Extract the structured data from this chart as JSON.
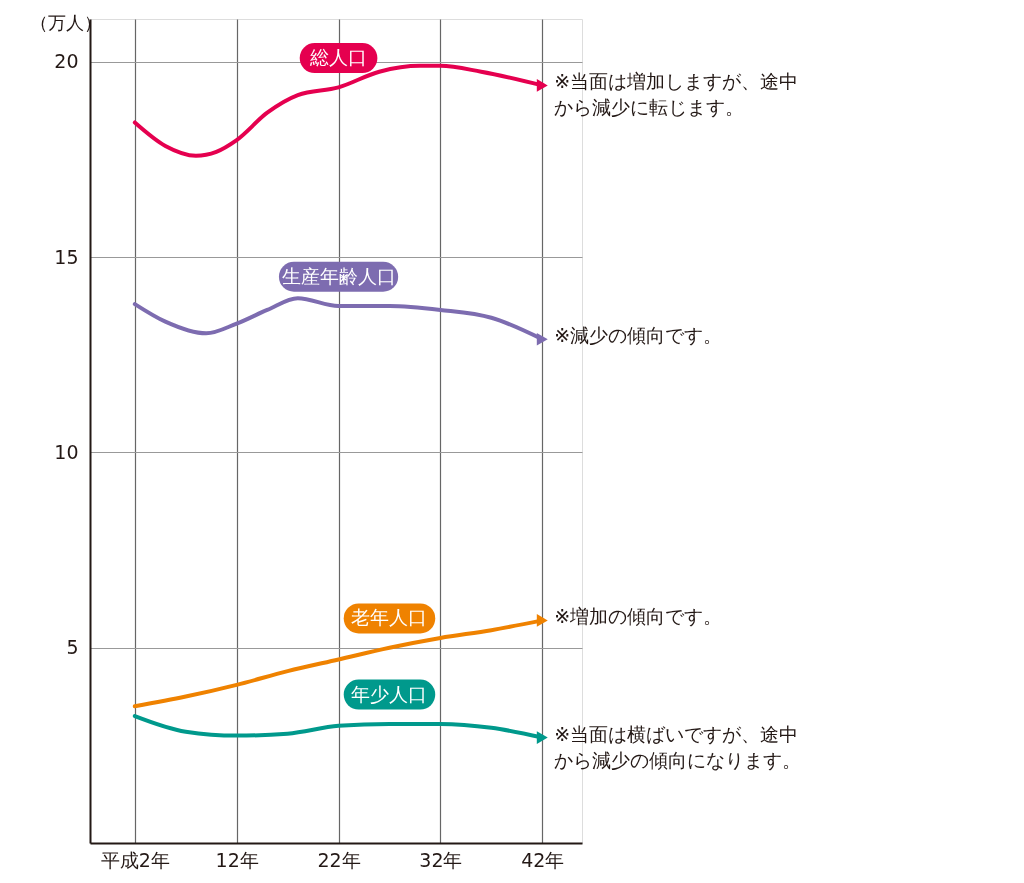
{
  "chart_data": {
    "type": "line",
    "ylabel": "（万人）",
    "xlim": [
      -2.4,
      45.9
    ],
    "xticks": [
      {
        "value": 2,
        "label": "平成2年"
      },
      {
        "value": 12,
        "label": "12年"
      },
      {
        "value": 22,
        "label": "22年"
      },
      {
        "value": 32,
        "label": "32年"
      },
      {
        "value": 42,
        "label": "42年"
      }
    ],
    "ylim": [
      0,
      21.1
    ],
    "yticks": [
      5,
      10,
      15,
      20
    ],
    "grid": true,
    "legend": false,
    "marker": "none",
    "line_style": "solid",
    "series": [
      {
        "name": "総人口",
        "color": "#e5004f",
        "x": [
          2,
          5,
          8,
          10,
          12,
          15,
          18,
          22,
          26,
          30,
          32,
          36,
          42
        ],
        "values": [
          18.45,
          17.85,
          17.6,
          17.7,
          18.0,
          18.7,
          19.15,
          19.35,
          19.75,
          19.9,
          19.9,
          19.75,
          19.4
        ]
      },
      {
        "name": "生産年齢人口",
        "color": "#7d6cb0",
        "x": [
          2,
          5,
          9,
          12,
          15,
          18,
          22,
          27,
          32,
          37,
          42
        ],
        "values": [
          13.8,
          13.35,
          13.05,
          13.3,
          13.65,
          13.95,
          13.75,
          13.75,
          13.65,
          13.45,
          12.9
        ]
      },
      {
        "name": "老年人口",
        "color": "#ef8200",
        "x": [
          2,
          7,
          12,
          17,
          22,
          27,
          32,
          37,
          42
        ],
        "values": [
          3.5,
          3.75,
          4.05,
          4.4,
          4.7,
          5.0,
          5.25,
          5.45,
          5.7
        ]
      },
      {
        "name": "年少人口",
        "color": "#00998c",
        "x": [
          2,
          7,
          12,
          17,
          22,
          27,
          32,
          37,
          42
        ],
        "values": [
          3.25,
          2.85,
          2.75,
          2.8,
          3.0,
          3.05,
          3.05,
          2.95,
          2.7
        ]
      }
    ],
    "annotations": [
      "※当面は増加しますが、途中から減少に転じます。",
      "※減少の傾向です。",
      "※増加の傾向です。",
      "※当面は横ばいですが、途中から減少の傾向になります。"
    ]
  }
}
